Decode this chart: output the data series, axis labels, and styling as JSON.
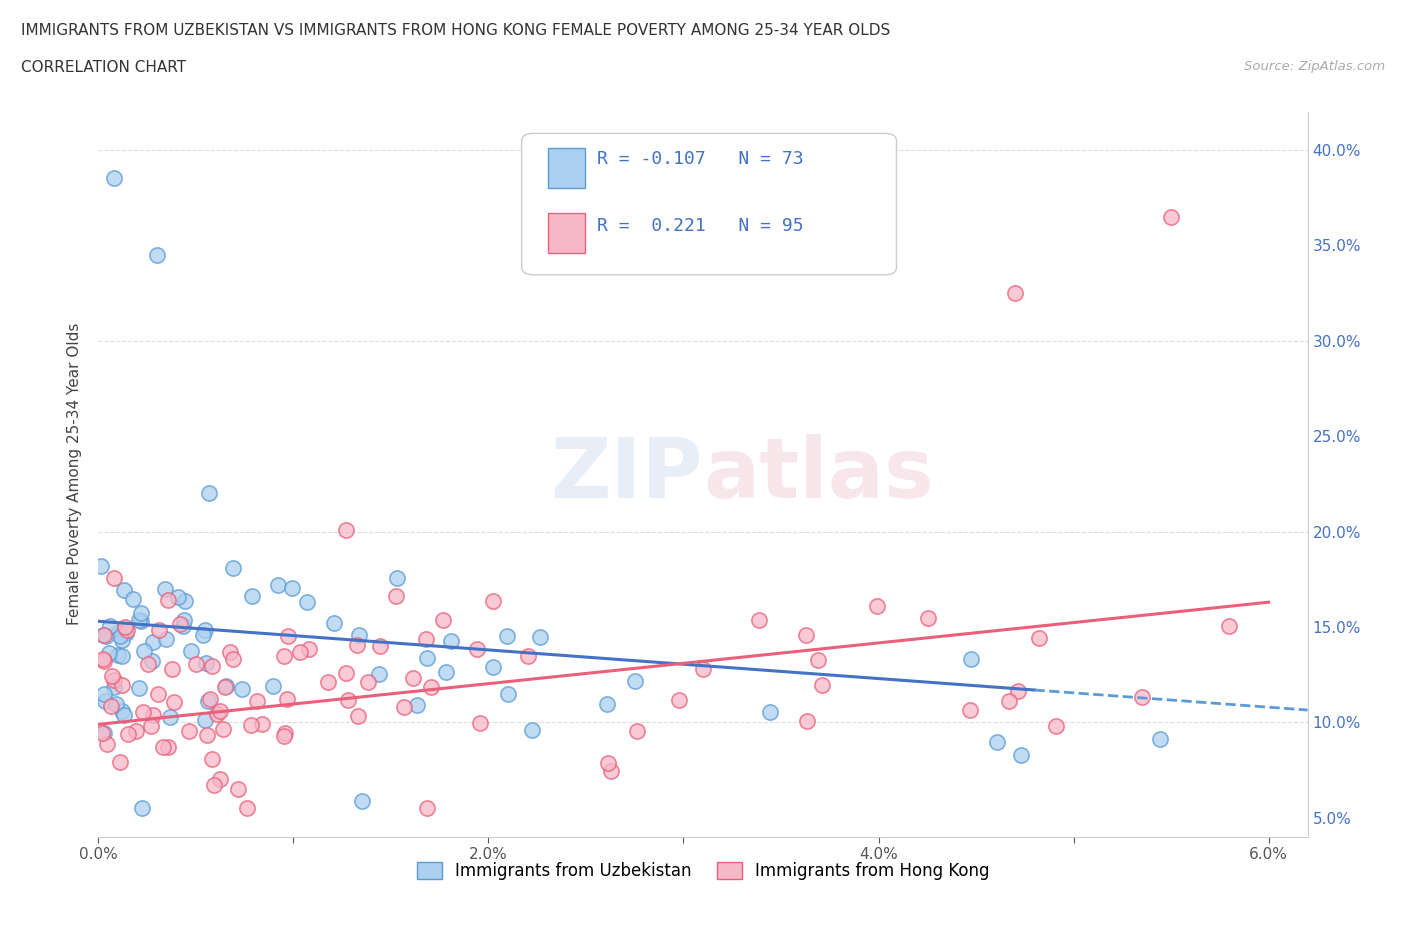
{
  "title_line1": "IMMIGRANTS FROM UZBEKISTAN VS IMMIGRANTS FROM HONG KONG FEMALE POVERTY AMONG 25-34 YEAR OLDS",
  "title_line2": "CORRELATION CHART",
  "source": "Source: ZipAtlas.com",
  "ylabel": "Female Poverty Among 25-34 Year Olds",
  "xlim": [
    0.0,
    0.062
  ],
  "ylim": [
    0.04,
    0.42
  ],
  "xtick_positions": [
    0.0,
    0.01,
    0.02,
    0.03,
    0.04,
    0.05,
    0.06
  ],
  "xtick_labels": [
    "0.0%",
    "",
    "2.0%",
    "",
    "4.0%",
    "",
    "6.0%"
  ],
  "ytick_positions": [
    0.05,
    0.1,
    0.15,
    0.2,
    0.25,
    0.3,
    0.35,
    0.4
  ],
  "ytick_labels_right": [
    "5.0%",
    "10.0%",
    "15.0%",
    "20.0%",
    "25.0%",
    "30.0%",
    "35.0%",
    "40.0%"
  ],
  "watermark": "ZIPatlas",
  "color_uzbekistan_fill": "#ACD0F0",
  "color_uzbekistan_edge": "#5B9BD5",
  "color_hongkong_fill": "#F7B8C8",
  "color_hongkong_edge": "#E8607A",
  "color_line_uzbekistan": "#4472C4",
  "color_line_hongkong": "#E8607A",
  "background_color": "#FFFFFF",
  "grid_color": "#DDDDDD",
  "legend_label1": "Immigrants from Uzbekistan",
  "legend_label2": "Immigrants from Hong Kong",
  "r1": -0.107,
  "n1": 73,
  "r2": 0.221,
  "n2": 95,
  "line_uz_x0": 0.0,
  "line_uz_y0": 0.153,
  "line_uz_x1": 0.06,
  "line_uz_y1": 0.108,
  "line_hk_x0": 0.0,
  "line_hk_y0": 0.099,
  "line_hk_x1": 0.06,
  "line_hk_y1": 0.163
}
